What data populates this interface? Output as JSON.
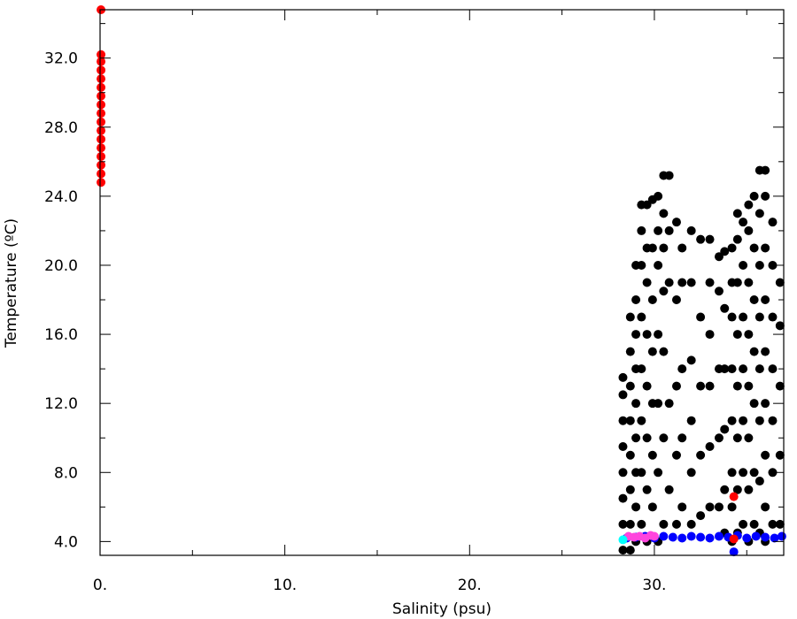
{
  "chart_data": {
    "type": "scatter",
    "xlabel": "Salinity (psu)",
    "ylabel": "Temperature (ºC)",
    "xlim": [
      0,
      37
    ],
    "ylim": [
      3.2,
      34.8
    ],
    "xticks": [
      {
        "value": 0,
        "label": "0."
      },
      {
        "value": 10,
        "label": "10."
      },
      {
        "value": 20,
        "label": "20."
      },
      {
        "value": 30,
        "label": "30."
      }
    ],
    "x_minor_ticks": [
      5,
      15,
      25,
      35
    ],
    "yticks": [
      {
        "value": 4,
        "label": "4.0"
      },
      {
        "value": 8,
        "label": "8.0"
      },
      {
        "value": 12,
        "label": "12.0"
      },
      {
        "value": 16,
        "label": "16.0"
      },
      {
        "value": 20,
        "label": "20.0"
      },
      {
        "value": 24,
        "label": "24.0"
      },
      {
        "value": 28,
        "label": "28.0"
      },
      {
        "value": 32,
        "label": "32.0"
      }
    ],
    "y_minor_ticks": [
      6,
      10,
      14,
      18,
      22,
      26,
      30,
      34
    ],
    "series": [
      {
        "color": "#000000",
        "x": [
          28.3,
          28.3,
          28.3,
          28.3,
          28.3,
          28.3,
          28.3,
          28.3,
          28.7,
          28.7,
          28.7,
          28.7,
          28.7,
          28.7,
          28.7,
          28.7,
          29.0,
          29.0,
          29.0,
          29.0,
          29.0,
          29.0,
          29.0,
          29.0,
          29.0,
          29.3,
          29.3,
          29.3,
          29.3,
          29.3,
          29.3,
          29.3,
          29.3,
          29.6,
          29.6,
          29.6,
          29.6,
          29.6,
          29.6,
          29.6,
          29.6,
          29.9,
          29.9,
          29.9,
          29.9,
          29.9,
          29.9,
          29.9,
          30.2,
          30.2,
          30.2,
          30.2,
          30.2,
          30.2,
          30.2,
          30.5,
          30.5,
          30.5,
          30.5,
          30.5,
          30.5,
          30.5,
          30.8,
          30.8,
          30.8,
          30.8,
          30.8,
          31.2,
          31.2,
          31.2,
          31.2,
          31.2,
          31.5,
          31.5,
          31.5,
          31.5,
          31.5,
          32.0,
          32.0,
          32.0,
          32.0,
          32.0,
          32.0,
          32.5,
          32.5,
          32.5,
          32.5,
          32.5,
          33.0,
          33.0,
          33.0,
          33.0,
          33.0,
          33.0,
          33.5,
          33.5,
          33.5,
          33.5,
          33.5,
          33.8,
          33.8,
          33.8,
          33.8,
          33.8,
          33.8,
          34.2,
          34.2,
          34.2,
          34.2,
          34.2,
          34.2,
          34.2,
          34.2,
          34.5,
          34.5,
          34.5,
          34.5,
          34.5,
          34.5,
          34.5,
          34.5,
          34.8,
          34.8,
          34.8,
          34.8,
          34.8,
          34.8,
          34.8,
          35.1,
          35.1,
          35.1,
          35.1,
          35.1,
          35.1,
          35.1,
          35.1,
          35.4,
          35.4,
          35.4,
          35.4,
          35.4,
          35.4,
          35.4,
          35.7,
          35.7,
          35.7,
          35.7,
          35.7,
          35.7,
          35.7,
          35.7,
          36.0,
          36.0,
          36.0,
          36.0,
          36.0,
          36.0,
          36.0,
          36.0,
          36.0,
          36.4,
          36.4,
          36.4,
          36.4,
          36.4,
          36.4,
          36.4,
          36.8,
          36.8,
          36.8,
          36.8,
          36.8
        ],
        "y": [
          3.5,
          5,
          6.5,
          8,
          9.5,
          11,
          12.5,
          13.5,
          3.5,
          5,
          7,
          9,
          11,
          13,
          15,
          17,
          4,
          6,
          8,
          10,
          12,
          14,
          16,
          18,
          20,
          5,
          8,
          11,
          14,
          17,
          20,
          22,
          23.5,
          4,
          7,
          10,
          13,
          16,
          19,
          21,
          23.5,
          6,
          9,
          12,
          15,
          18,
          21,
          23.8,
          4,
          8,
          12,
          16,
          20,
          22,
          24,
          5,
          10,
          15,
          18.5,
          21,
          23,
          25.2,
          7,
          12,
          19,
          22,
          25.2,
          5,
          9,
          13,
          18,
          22.5,
          6,
          10,
          14,
          19,
          21,
          5,
          8,
          11,
          14.5,
          19,
          22,
          5.5,
          9,
          13,
          17,
          21.5,
          6,
          9.5,
          13,
          16,
          19,
          21.5,
          6,
          10,
          14,
          18.5,
          20.5,
          4.5,
          7,
          10.5,
          14,
          17.5,
          20.8,
          4,
          6,
          8,
          11,
          14,
          17,
          19,
          21,
          4.5,
          7,
          10,
          13,
          16,
          19,
          21.5,
          23,
          5,
          8,
          11,
          14,
          17,
          20,
          22.5,
          4,
          7,
          10,
          13,
          16,
          19,
          22,
          23.5,
          5,
          8,
          12,
          15,
          18,
          21,
          24,
          4.5,
          7.5,
          11,
          14,
          17,
          20,
          23,
          25.5,
          4,
          6,
          9,
          12,
          15,
          18,
          21,
          24,
          25.5,
          5,
          8,
          11,
          14,
          17,
          20,
          22.5,
          5,
          9,
          13,
          16.5,
          19
        ]
      },
      {
        "color": "#0000ff",
        "x": [
          28.5,
          29.0,
          29.5,
          30.0,
          30.5,
          31.0,
          31.5,
          32.0,
          32.5,
          33.0,
          33.5,
          34.0,
          34.5,
          35.0,
          35.5,
          36.0,
          36.5,
          36.9,
          34.3
        ],
        "y": [
          4.2,
          4.25,
          4.3,
          4.2,
          4.3,
          4.25,
          4.2,
          4.3,
          4.25,
          4.2,
          4.3,
          4.25,
          4.35,
          4.2,
          4.3,
          4.25,
          4.2,
          4.3,
          3.4
        ]
      },
      {
        "color": "#ff44dd",
        "x": [
          28.6,
          28.9,
          29.2,
          29.5,
          29.8,
          30.0
        ],
        "y": [
          4.3,
          4.25,
          4.3,
          4.2,
          4.35,
          4.3
        ]
      },
      {
        "color": "#00ffff",
        "x": [
          28.3
        ],
        "y": [
          4.1
        ]
      },
      {
        "color": "#ff0000",
        "x": [
          0.05,
          0.05,
          0.05,
          0.05,
          0.05,
          0.05,
          0.05,
          0.05,
          0.05,
          0.05,
          0.05,
          0.05,
          0.05,
          0.05,
          0.05,
          0.05,
          0.05,
          34.3,
          34.3
        ],
        "y": [
          24.8,
          25.3,
          25.8,
          26.3,
          26.8,
          27.3,
          27.8,
          28.3,
          28.8,
          29.3,
          29.8,
          30.3,
          30.8,
          31.3,
          31.8,
          32.2,
          34.8,
          6.6,
          4.15
        ]
      }
    ]
  }
}
